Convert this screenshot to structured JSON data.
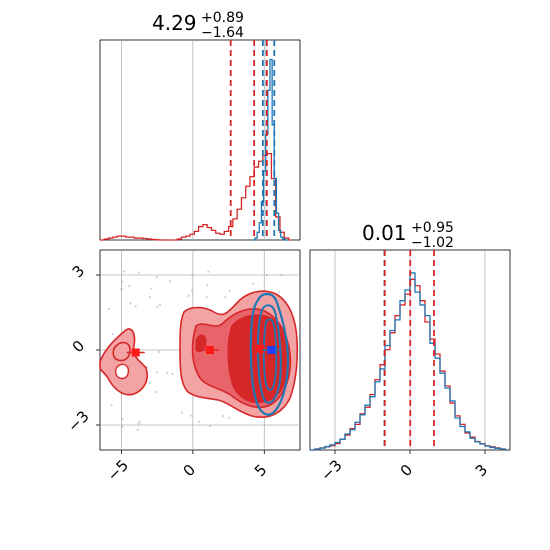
{
  "chart_data": {
    "type": "corner",
    "colors": {
      "red": "#d62728",
      "blue": "#1f77b4",
      "grid": "#b0b0b0",
      "fill_light": "#f4a3a4",
      "fill_mid": "#e8636a",
      "fill_dark": "#d62728"
    },
    "panels": [
      {
        "id": "hist-param1",
        "type": "histogram",
        "title": {
          "value": "4.29",
          "plus": "+0.89",
          "minus": "−1.64"
        },
        "xlim": [
          -6.5,
          7.5
        ],
        "grid_x": [
          -5,
          0,
          5
        ],
        "quantiles_red": [
          2.65,
          4.29,
          5.18
        ],
        "quantiles_blue": [
          4.9,
          5.15,
          5.7
        ],
        "series": [
          {
            "name": "",
            "color": "red",
            "bins": [
              [
                -6.5,
                0
              ],
              [
                -6.2,
                0.005
              ],
              [
                -5.9,
                0.01
              ],
              [
                -5.6,
                0.015
              ],
              [
                -5.3,
                0.02
              ],
              [
                -5.0,
                0.02
              ],
              [
                -4.7,
                0.015
              ],
              [
                -4.4,
                0.015
              ],
              [
                -4.1,
                0.01
              ],
              [
                -3.8,
                0.01
              ],
              [
                -3.5,
                0.008
              ],
              [
                -3.2,
                0.005
              ],
              [
                -2.9,
                0.003
              ],
              [
                -2.6,
                0.001
              ],
              [
                -2.3,
                0
              ],
              [
                -2.0,
                0
              ],
              [
                -1.7,
                0
              ],
              [
                -1.4,
                0
              ],
              [
                -1.1,
                0.005
              ],
              [
                -0.8,
                0.015
              ],
              [
                -0.5,
                0.02
              ],
              [
                -0.2,
                0.03
              ],
              [
                0.1,
                0.045
              ],
              [
                0.4,
                0.07
              ],
              [
                0.7,
                0.08
              ],
              [
                1.0,
                0.065
              ],
              [
                1.3,
                0.05
              ],
              [
                1.6,
                0.035
              ],
              [
                1.9,
                0.03
              ],
              [
                2.2,
                0.045
              ],
              [
                2.5,
                0.07
              ],
              [
                2.8,
                0.11
              ],
              [
                3.1,
                0.16
              ],
              [
                3.4,
                0.22
              ],
              [
                3.7,
                0.28
              ],
              [
                4.0,
                0.33
              ],
              [
                4.3,
                0.38
              ],
              [
                4.6,
                0.41
              ],
              [
                4.9,
                0.44
              ],
              [
                5.2,
                0.45
              ],
              [
                5.5,
                0.32
              ],
              [
                5.8,
                0.12
              ],
              [
                6.1,
                0.04
              ],
              [
                6.4,
                0.01
              ],
              [
                6.7,
                0
              ]
            ]
          },
          {
            "name": "",
            "color": "blue",
            "bins": [
              [
                4.2,
                0
              ],
              [
                4.35,
                0.01
              ],
              [
                4.5,
                0.04
              ],
              [
                4.65,
                0.09
              ],
              [
                4.8,
                0.2
              ],
              [
                4.95,
                0.36
              ],
              [
                5.1,
                0.55
              ],
              [
                5.25,
                0.78
              ],
              [
                5.4,
                0.94
              ],
              [
                5.55,
                0.6
              ],
              [
                5.7,
                0.32
              ],
              [
                5.85,
                0.14
              ],
              [
                6.0,
                0.05
              ],
              [
                6.15,
                0.015
              ],
              [
                6.3,
                0.005
              ],
              [
                6.45,
                0
              ]
            ]
          }
        ],
        "ymax": 1.0
      },
      {
        "id": "scatter-2d",
        "type": "contour",
        "xlim": [
          -6.5,
          7.5
        ],
        "ylim": [
          -4.0,
          4.0
        ],
        "grid_x": [
          -5,
          0,
          5
        ],
        "grid_y": [
          -3,
          0,
          3
        ],
        "xticks": [
          "−5",
          "0",
          "5"
        ],
        "yticks": [
          "−3",
          "0",
          "3"
        ],
        "markers": [
          {
            "x": -4.0,
            "y": -0.1,
            "color": "red"
          },
          {
            "x": 1.2,
            "y": 0.0,
            "color": "red"
          },
          {
            "x": 4.7,
            "y": 0.05,
            "color": "red"
          },
          {
            "x": 5.5,
            "y": 0.0,
            "color": "blue"
          }
        ]
      },
      {
        "id": "hist-param2",
        "type": "histogram",
        "title": {
          "value": "0.01",
          "plus": "+0.95",
          "minus": "−1.02"
        },
        "xlim": [
          -4.0,
          4.0
        ],
        "grid_x": [
          -3,
          0,
          3
        ],
        "xticks": [
          "−3",
          "0",
          "3"
        ],
        "quantiles_red": [
          -1.01,
          0.01,
          0.96
        ],
        "quantiles_blue": [
          -1.02
        ],
        "series": [
          {
            "name": "",
            "color": "red",
            "bins": [
              [
                -4.0,
                0
              ],
              [
                -3.8,
                0.005
              ],
              [
                -3.6,
                0.01
              ],
              [
                -3.4,
                0.015
              ],
              [
                -3.2,
                0.02
              ],
              [
                -3.0,
                0.03
              ],
              [
                -2.8,
                0.05
              ],
              [
                -2.6,
                0.07
              ],
              [
                -2.4,
                0.1
              ],
              [
                -2.2,
                0.12
              ],
              [
                -2.0,
                0.17
              ],
              [
                -1.8,
                0.2
              ],
              [
                -1.6,
                0.26
              ],
              [
                -1.4,
                0.33
              ],
              [
                -1.2,
                0.4
              ],
              [
                -1.0,
                0.47
              ],
              [
                -0.8,
                0.55
              ],
              [
                -0.6,
                0.63
              ],
              [
                -0.4,
                0.68
              ],
              [
                -0.2,
                0.73
              ],
              [
                0.0,
                0.8
              ],
              [
                0.2,
                0.77
              ],
              [
                0.4,
                0.7
              ],
              [
                0.6,
                0.6
              ],
              [
                0.8,
                0.52
              ],
              [
                1.0,
                0.45
              ],
              [
                1.2,
                0.37
              ],
              [
                1.4,
                0.3
              ],
              [
                1.6,
                0.22
              ],
              [
                1.8,
                0.16
              ],
              [
                2.0,
                0.12
              ],
              [
                2.2,
                0.08
              ],
              [
                2.4,
                0.06
              ],
              [
                2.6,
                0.04
              ],
              [
                2.8,
                0.03
              ],
              [
                3.0,
                0.02
              ],
              [
                3.2,
                0.015
              ],
              [
                3.4,
                0.01
              ],
              [
                3.6,
                0.005
              ],
              [
                3.8,
                0
              ]
            ]
          },
          {
            "name": "",
            "color": "blue",
            "bins": [
              [
                -4.0,
                0
              ],
              [
                -3.8,
                0.004
              ],
              [
                -3.6,
                0.009
              ],
              [
                -3.4,
                0.016
              ],
              [
                -3.2,
                0.024
              ],
              [
                -3.0,
                0.035
              ],
              [
                -2.8,
                0.05
              ],
              [
                -2.6,
                0.075
              ],
              [
                -2.4,
                0.095
              ],
              [
                -2.2,
                0.13
              ],
              [
                -2.0,
                0.165
              ],
              [
                -1.8,
                0.21
              ],
              [
                -1.6,
                0.25
              ],
              [
                -1.4,
                0.32
              ],
              [
                -1.2,
                0.38
              ],
              [
                -1.0,
                0.49
              ],
              [
                -0.8,
                0.56
              ],
              [
                -0.6,
                0.61
              ],
              [
                -0.4,
                0.7
              ],
              [
                -0.2,
                0.75
              ],
              [
                0.0,
                0.83
              ],
              [
                0.2,
                0.74
              ],
              [
                0.4,
                0.68
              ],
              [
                0.6,
                0.63
              ],
              [
                0.8,
                0.5
              ],
              [
                1.0,
                0.43
              ],
              [
                1.2,
                0.36
              ],
              [
                1.4,
                0.29
              ],
              [
                1.6,
                0.23
              ],
              [
                1.8,
                0.15
              ],
              [
                2.0,
                0.11
              ],
              [
                2.2,
                0.085
              ],
              [
                2.4,
                0.055
              ],
              [
                2.6,
                0.038
              ],
              [
                2.8,
                0.028
              ],
              [
                3.0,
                0.018
              ],
              [
                3.2,
                0.012
              ],
              [
                3.4,
                0.008
              ],
              [
                3.6,
                0.004
              ],
              [
                3.8,
                0
              ]
            ]
          }
        ],
        "ymax": 0.9
      }
    ]
  }
}
